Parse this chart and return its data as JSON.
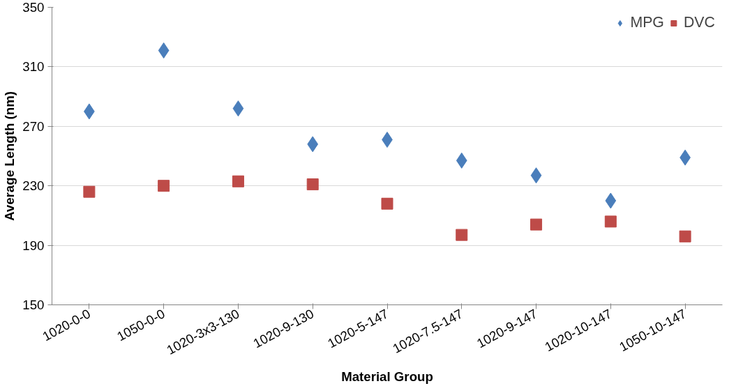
{
  "chart_data": {
    "type": "scatter",
    "xlabel": "Material Group",
    "ylabel": "Average Length (nm)",
    "categories": [
      "1020-0-0",
      "1050-0-0",
      "1020-3x3-130",
      "1020-9-130",
      "1020-5-147",
      "1020-7.5-147",
      "1020-9-147",
      "1020-10-147",
      "1050-10-147"
    ],
    "series": [
      {
        "name": "MPG",
        "color": "#4a7ebb",
        "marker": "diamond",
        "values": [
          280,
          321,
          282,
          258,
          261,
          247,
          237,
          220,
          249
        ]
      },
      {
        "name": "DVC",
        "color": "#be4b48",
        "marker": "square",
        "values": [
          226,
          230,
          233,
          231,
          218,
          197,
          204,
          206,
          196
        ]
      }
    ],
    "ylim": [
      150,
      350
    ],
    "yticks": [
      150,
      190,
      230,
      270,
      310,
      350
    ],
    "grid": "y",
    "legend": "top right"
  }
}
